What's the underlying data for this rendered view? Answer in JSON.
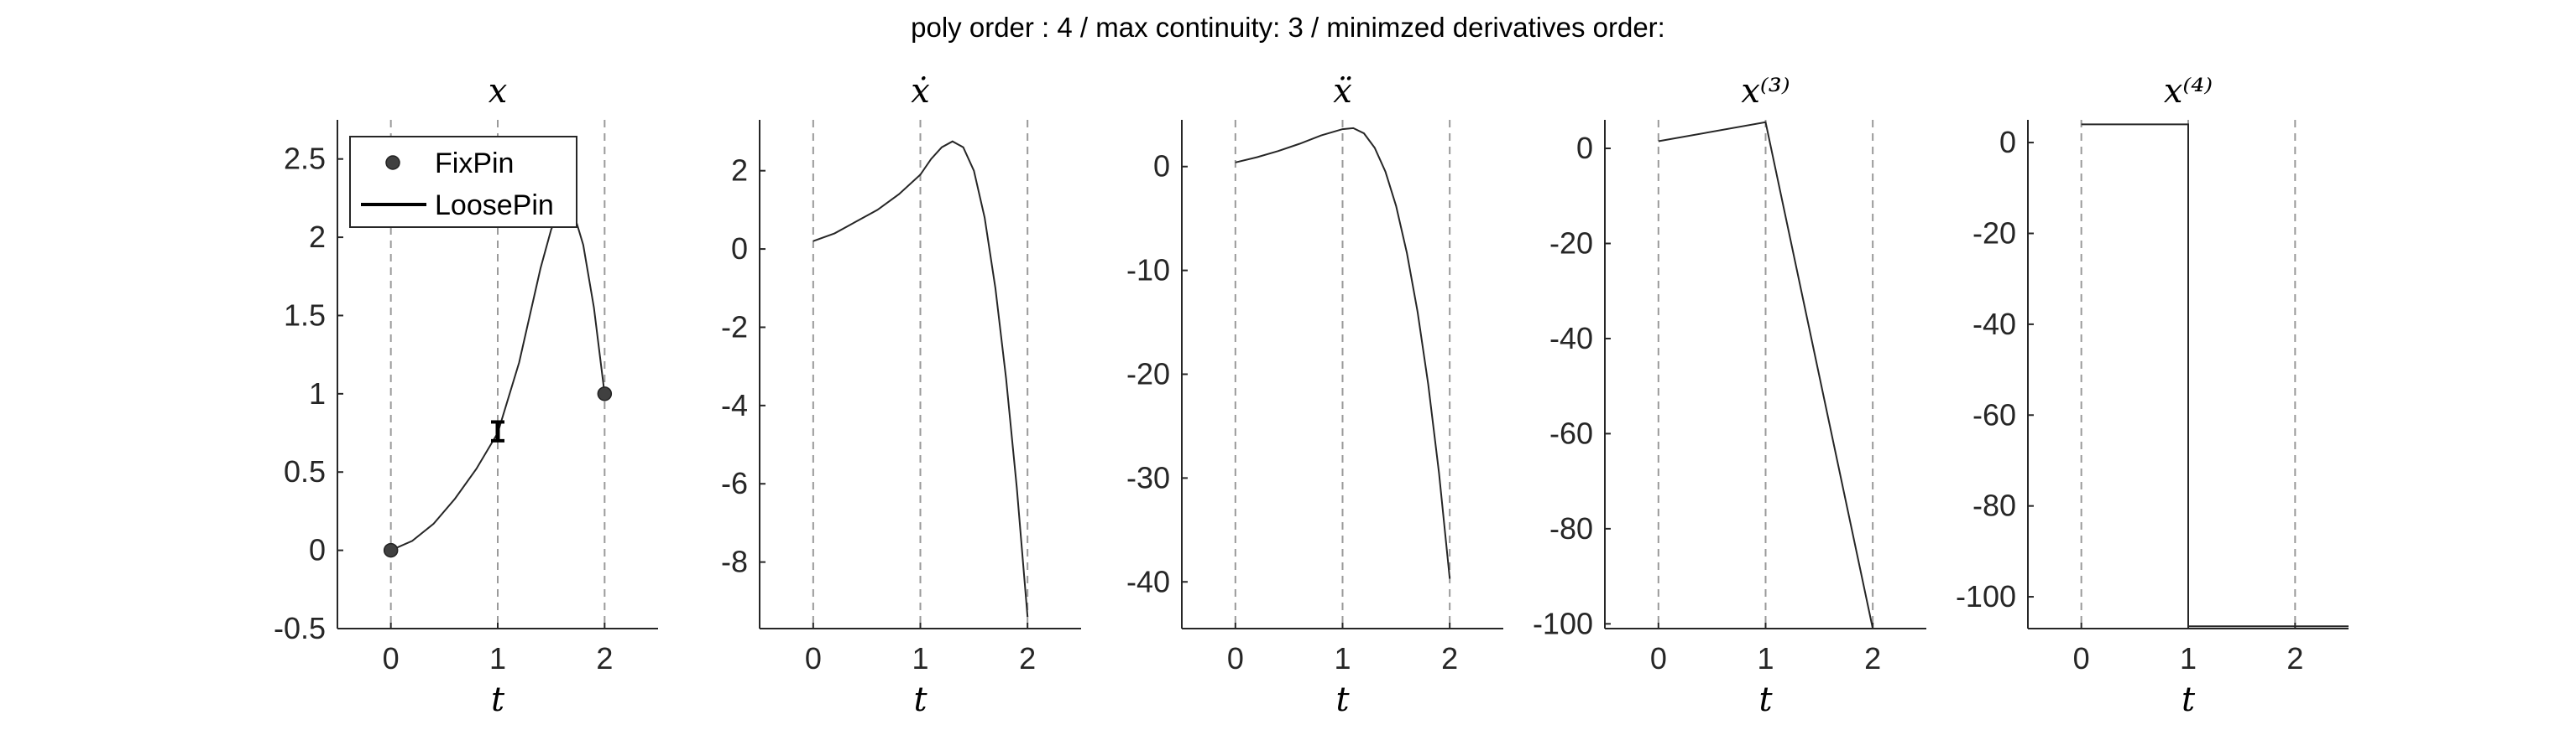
{
  "suptitle": "poly order : 4 / max continuity: 3 / minimzed derivatives order:",
  "colors": {
    "axis": "#262626",
    "curve": "#262626",
    "guide": "#9a9a9a",
    "marker": "#404040"
  },
  "legend": {
    "items": [
      {
        "label": "FixPin",
        "icon": "filled-circle-marker"
      },
      {
        "label": "LoosePin",
        "icon": "solid-line"
      }
    ],
    "placement": "top-left"
  },
  "chart_data": [
    {
      "type": "line",
      "title": "x",
      "xlabel": "t",
      "xlim": [
        -0.5,
        2.5
      ],
      "ylim": [
        -0.5,
        2.75
      ],
      "xticks": [
        0,
        1,
        2
      ],
      "xtick_labels": [
        "0",
        "1",
        "2"
      ],
      "yticks": [
        -0.5,
        0,
        0.5,
        1,
        1.5,
        2,
        2.5
      ],
      "ytick_labels": [
        "-0.5",
        "0",
        "0.5",
        "1",
        "1.5",
        "2",
        "2.5"
      ],
      "vlines": [
        0,
        1,
        2
      ],
      "grid": false,
      "series": [
        {
          "name": "LoosePin",
          "x": [
            0,
            0.2,
            0.4,
            0.6,
            0.8,
            1.0,
            1.2,
            1.4,
            1.5,
            1.6,
            1.7,
            1.8,
            1.9,
            2.0
          ],
          "y": [
            0,
            0.06,
            0.17,
            0.33,
            0.52,
            0.75,
            1.2,
            1.8,
            2.05,
            2.2,
            2.18,
            1.95,
            1.55,
            1.0
          ]
        },
        {
          "name": "FixPin",
          "x": [
            0,
            2
          ],
          "y": [
            0,
            1
          ]
        }
      ],
      "errorbars": [
        {
          "x": 1,
          "y": 0.76,
          "low": 0.7,
          "high": 0.82
        }
      ]
    },
    {
      "type": "line",
      "title": "ẋ",
      "xlabel": "t",
      "xlim": [
        -0.5,
        2.5
      ],
      "ylim": [
        -9.7,
        3.3
      ],
      "xticks": [
        0,
        1,
        2
      ],
      "xtick_labels": [
        "0",
        "1",
        "2"
      ],
      "yticks": [
        -8,
        -6,
        -4,
        -2,
        0,
        2
      ],
      "ytick_labels": [
        "-8",
        "-6",
        "-4",
        "-2",
        "0",
        "2"
      ],
      "vlines": [
        0,
        1,
        2
      ],
      "grid": false,
      "series": [
        {
          "x": [
            0,
            0.2,
            0.4,
            0.6,
            0.8,
            1.0,
            1.1,
            1.2,
            1.3,
            1.4,
            1.5,
            1.6,
            1.7,
            1.8,
            1.9,
            2.0
          ],
          "y": [
            0.2,
            0.4,
            0.7,
            1.0,
            1.4,
            1.9,
            2.3,
            2.6,
            2.75,
            2.6,
            2.0,
            0.8,
            -1.0,
            -3.3,
            -6.1,
            -9.4
          ]
        }
      ]
    },
    {
      "type": "line",
      "title": "ẍ",
      "xlabel": "t",
      "xlim": [
        -0.5,
        2.5
      ],
      "ylim": [
        -44.5,
        4.5
      ],
      "xticks": [
        0,
        1,
        2
      ],
      "xtick_labels": [
        "0",
        "1",
        "2"
      ],
      "yticks": [
        -40,
        -30,
        -20,
        -10,
        0
      ],
      "ytick_labels": [
        "-40",
        "-30",
        "-20",
        "-10",
        "0"
      ],
      "vlines": [
        0,
        1,
        2
      ],
      "grid": false,
      "series": [
        {
          "x": [
            0,
            0.2,
            0.4,
            0.6,
            0.8,
            1.0,
            1.1,
            1.2,
            1.3,
            1.4,
            1.5,
            1.6,
            1.7,
            1.8,
            1.9,
            2.0
          ],
          "y": [
            0.4,
            0.9,
            1.5,
            2.2,
            3.0,
            3.6,
            3.7,
            3.2,
            1.8,
            -0.5,
            -3.8,
            -8.3,
            -14.0,
            -21.0,
            -29.5,
            -39.7
          ]
        }
      ]
    },
    {
      "type": "line",
      "title": "x⁽³⁾",
      "xlabel": "t",
      "xlim": [
        -0.5,
        2.5
      ],
      "ylim": [
        -101,
        6
      ],
      "xticks": [
        0,
        1,
        2
      ],
      "xtick_labels": [
        "0",
        "1",
        "2"
      ],
      "yticks": [
        -100,
        -80,
        -60,
        -40,
        -20,
        0
      ],
      "ytick_labels": [
        "-100",
        "-80",
        "-60",
        "-40",
        "-20",
        "0"
      ],
      "vlines": [
        0,
        1,
        2
      ],
      "grid": false,
      "series": [
        {
          "x": [
            0,
            1,
            2
          ],
          "y": [
            1.5,
            5.5,
            -101
          ]
        }
      ]
    },
    {
      "type": "line",
      "title": "x⁽⁴⁾",
      "xlabel": "t",
      "xlim": [
        -0.5,
        2.5
      ],
      "ylim": [
        -107,
        5
      ],
      "xticks": [
        0,
        1,
        2
      ],
      "xtick_labels": [
        "0",
        "1",
        "2"
      ],
      "yticks": [
        -100,
        -80,
        -60,
        -40,
        -20,
        0
      ],
      "ytick_labels": [
        "-100",
        "-80",
        "-60",
        "-40",
        "-20",
        "0"
      ],
      "vlines": [
        0,
        1,
        2
      ],
      "grid": false,
      "series": [
        {
          "x": [
            0,
            1,
            1,
            2.5
          ],
          "y": [
            4,
            4,
            -106.5,
            -106.5
          ]
        }
      ]
    }
  ]
}
